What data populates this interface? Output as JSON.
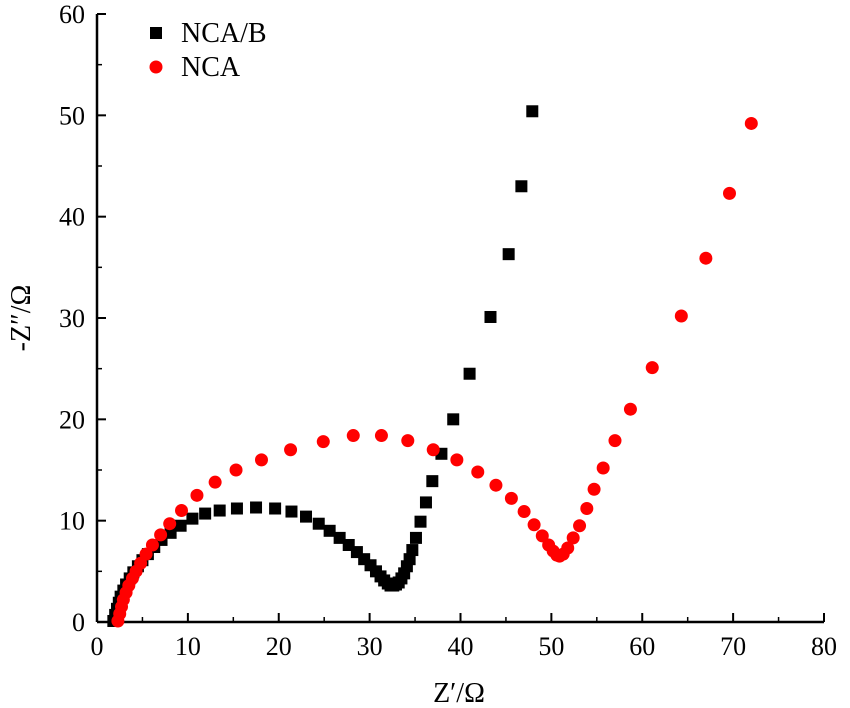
{
  "chart_data": {
    "type": "scatter",
    "title": "",
    "xlabel": "Z′/Ω",
    "ylabel": "-Z″/Ω",
    "xlim": [
      0,
      80
    ],
    "ylim": [
      0,
      60
    ],
    "xticks": [
      "0",
      "10",
      "20",
      "30",
      "40",
      "50",
      "60",
      "70",
      "80"
    ],
    "yticks": [
      "0",
      "10",
      "20",
      "30",
      "40",
      "50",
      "60"
    ],
    "grid": false,
    "legend_position": "top-left",
    "series": [
      {
        "name": "NCA/B",
        "marker": "square",
        "color": "#000000",
        "x": [
          1.8,
          2.0,
          2.2,
          2.4,
          2.6,
          2.9,
          3.2,
          3.6,
          4.0,
          4.5,
          5.0,
          5.6,
          6.3,
          7.1,
          8.1,
          9.2,
          10.5,
          11.9,
          13.5,
          15.4,
          17.5,
          19.6,
          21.4,
          23.0,
          24.4,
          25.6,
          26.7,
          27.7,
          28.6,
          29.4,
          30.1,
          30.7,
          31.2,
          31.6,
          32.0,
          32.3,
          32.6,
          32.9,
          33.2,
          33.5,
          33.8,
          34.1,
          34.4,
          34.7,
          35.1,
          35.6,
          36.2,
          36.9,
          37.9,
          39.2,
          41.0,
          43.3,
          45.3,
          46.7,
          47.9
        ],
        "y": [
          0.1,
          0.7,
          1.3,
          1.9,
          2.5,
          3.1,
          3.7,
          4.3,
          4.9,
          5.5,
          6.1,
          6.7,
          7.4,
          8.1,
          8.8,
          9.5,
          10.2,
          10.7,
          11.0,
          11.2,
          11.3,
          11.2,
          10.9,
          10.4,
          9.7,
          9.0,
          8.3,
          7.6,
          6.9,
          6.2,
          5.6,
          5.0,
          4.5,
          4.1,
          3.8,
          3.6,
          3.6,
          3.7,
          3.9,
          4.3,
          4.8,
          5.5,
          6.2,
          7.1,
          8.3,
          9.9,
          11.8,
          13.9,
          16.6,
          20.0,
          24.5,
          30.1,
          36.3,
          43.0,
          50.4
        ]
      },
      {
        "name": "NCA",
        "marker": "circle",
        "color": "#ff0000",
        "x": [
          2.3,
          2.5,
          2.7,
          2.9,
          3.2,
          3.5,
          3.9,
          4.3,
          4.8,
          5.4,
          6.1,
          7.0,
          8.0,
          9.3,
          11.0,
          13.0,
          15.3,
          18.1,
          21.3,
          24.9,
          28.2,
          31.3,
          34.2,
          37.0,
          39.6,
          41.9,
          43.9,
          45.6,
          47.0,
          48.1,
          49.0,
          49.7,
          50.2,
          50.6,
          50.9,
          51.3,
          51.8,
          52.4,
          53.1,
          53.9,
          54.7,
          55.7,
          57.0,
          58.7,
          61.1,
          64.3,
          67.0,
          69.6,
          72.0
        ],
        "y": [
          0.1,
          0.8,
          1.5,
          2.2,
          2.9,
          3.6,
          4.3,
          5.0,
          5.8,
          6.7,
          7.6,
          8.6,
          9.7,
          11.0,
          12.5,
          13.8,
          15.0,
          16.0,
          17.0,
          17.8,
          18.4,
          18.4,
          17.9,
          17.0,
          16.0,
          14.8,
          13.5,
          12.2,
          10.9,
          9.6,
          8.5,
          7.6,
          7.0,
          6.6,
          6.5,
          6.7,
          7.3,
          8.3,
          9.5,
          11.2,
          13.1,
          15.2,
          17.9,
          21.0,
          25.1,
          30.2,
          35.9,
          42.3,
          49.2
        ]
      }
    ]
  }
}
